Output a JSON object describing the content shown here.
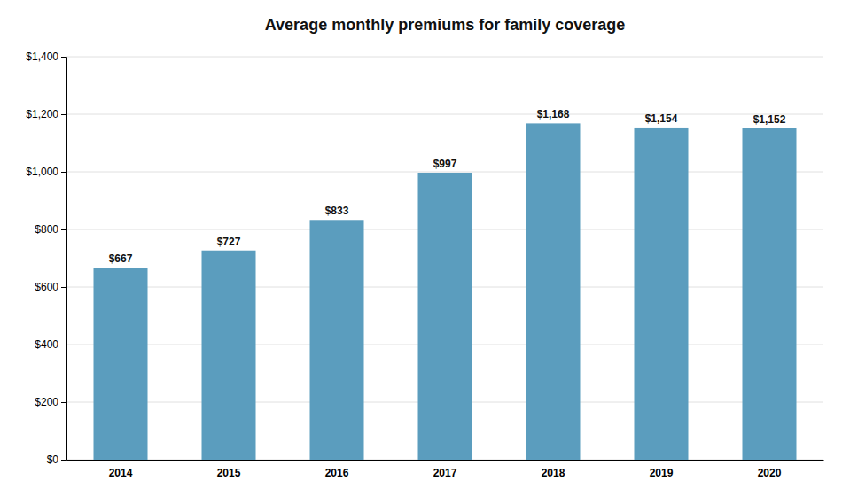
{
  "chart_data": {
    "type": "bar",
    "title": "Average monthly premiums for family coverage",
    "categories": [
      "2014",
      "2015",
      "2016",
      "2017",
      "2018",
      "2019",
      "2020"
    ],
    "values": [
      667,
      727,
      833,
      997,
      1168,
      1154,
      1152
    ],
    "value_labels": [
      "$667",
      "$727",
      "$833",
      "$997",
      "$1,168",
      "$1,154",
      "$1,152"
    ],
    "color": "#5b9dbe",
    "ylim": [
      0,
      1400
    ],
    "yticks": [
      {
        "value": 0,
        "label": "$0"
      },
      {
        "value": 200,
        "label": "$200"
      },
      {
        "value": 400,
        "label": "$400"
      },
      {
        "value": 600,
        "label": "$600"
      },
      {
        "value": 800,
        "label": "$800"
      },
      {
        "value": 1000,
        "label": "$1,000"
      },
      {
        "value": 1200,
        "label": "$1,200"
      },
      {
        "value": 1400,
        "label": "$1,400"
      }
    ],
    "grid": true,
    "data_labels": true
  }
}
